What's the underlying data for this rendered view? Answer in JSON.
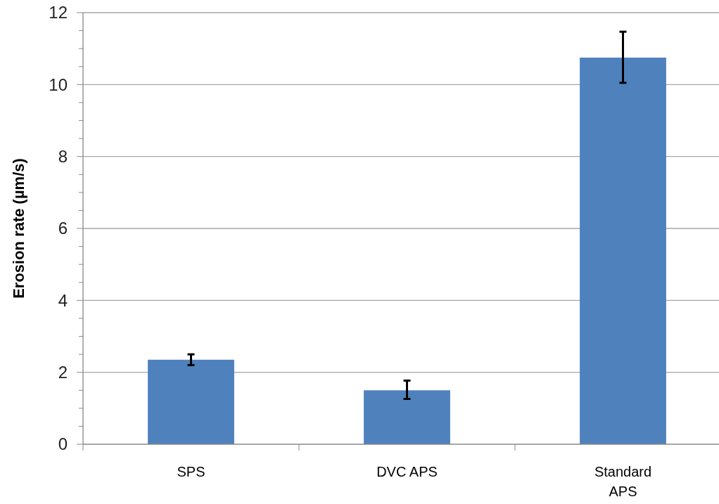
{
  "chart_data": {
    "type": "bar",
    "ylabel": "Erosion rate (µm/s)",
    "categories": [
      "SPS",
      "DVC APS",
      "Standard APS"
    ],
    "values": [
      2.35,
      1.5,
      10.75
    ],
    "errors": [
      [
        2.2,
        2.5
      ],
      [
        1.26,
        1.77
      ],
      [
        10.05,
        11.47
      ]
    ],
    "color": "#4f81bd",
    "ylim": [
      0,
      12
    ],
    "yticks": [
      0,
      {
        "value": 0.5,
        "label": null
      },
      {
        "value": 1,
        "label": null
      },
      {
        "value": 1.5,
        "label": null
      },
      2,
      {
        "value": 2.5,
        "label": null
      },
      {
        "value": 3,
        "label": null
      },
      {
        "value": 3.5,
        "label": null
      },
      4,
      {
        "value": 4.5,
        "label": null
      },
      {
        "value": 5,
        "label": null
      },
      {
        "value": 5.5,
        "label": null
      },
      6,
      {
        "value": 6.5,
        "label": null
      },
      {
        "value": 7,
        "label": null
      },
      {
        "value": 7.5,
        "label": null
      },
      8,
      {
        "value": 8.5,
        "label": null
      },
      {
        "value": 9,
        "label": null
      },
      {
        "value": 9.5,
        "label": null
      },
      10,
      {
        "value": 10.5,
        "label": null
      },
      {
        "value": 11,
        "label": null
      },
      {
        "value": 11.5,
        "label": null
      },
      12
    ],
    "grid": "y"
  }
}
